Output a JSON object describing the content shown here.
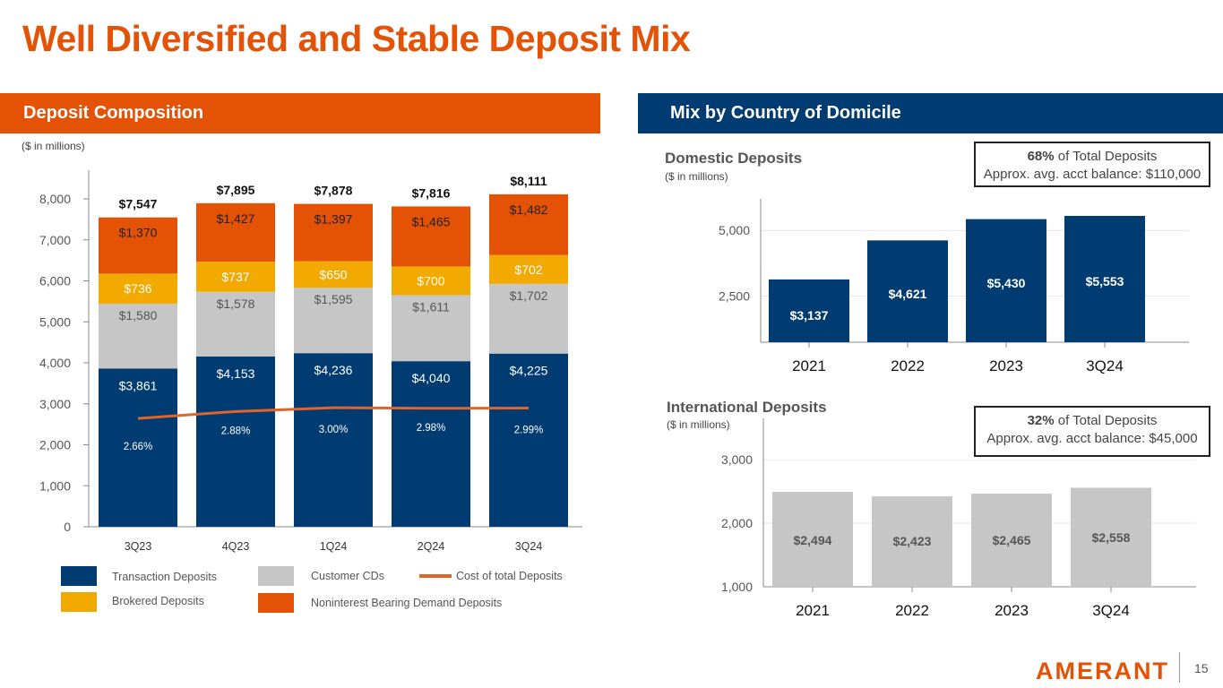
{
  "title": "Well Diversified and Stable Deposit Mix",
  "left_banner": "Deposit Composition",
  "right_banner": "Mix by Country of Domicile",
  "left_units": "($ in millions)",
  "domestic": {
    "heading": "Domestic Deposits",
    "units": "($ in millions)",
    "callout_pct": "68%",
    "callout_text": " of Total Deposits",
    "callout_balance": "Approx. avg. acct balance: $110,000"
  },
  "international": {
    "heading": "International Deposits",
    "units": "($ in millions)",
    "callout_pct": "32%",
    "callout_text": " of Total Deposits",
    "callout_balance": "Approx. avg. acct balance: $45,000"
  },
  "legend": {
    "transaction": "Transaction Deposits",
    "brokered": "Brokered Deposits",
    "cds": "Customer CDs",
    "nonint": "Noninterest Bearing Demand Deposits",
    "cost": "Cost of total Deposits"
  },
  "colors": {
    "orange": "#E35205",
    "navy": "#003B71",
    "gray": "#C6C6C6",
    "gold": "#F2A900",
    "line": "#E0652A"
  },
  "chart_data": [
    {
      "type": "bar",
      "stacked": true,
      "categories": [
        "3Q23",
        "4Q23",
        "1Q24",
        "2Q24",
        "3Q24"
      ],
      "series": [
        {
          "name": "Transaction Deposits",
          "values": [
            3861,
            4153,
            4236,
            4040,
            4225
          ],
          "labels": [
            "$3,861",
            "$4,153",
            "$4,236",
            "$4,040",
            "$4,225"
          ],
          "color": "#003B71"
        },
        {
          "name": "Customer CDs",
          "values": [
            1580,
            1578,
            1595,
            1611,
            1702
          ],
          "labels": [
            "$1,580",
            "$1,578",
            "$1,595",
            "$1,611",
            "$1,702"
          ],
          "color": "#C6C6C6"
        },
        {
          "name": "Brokered Deposits",
          "values": [
            736,
            737,
            650,
            700,
            702
          ],
          "labels": [
            "$736",
            "$737",
            "$650",
            "$700",
            "$702"
          ],
          "color": "#F2A900"
        },
        {
          "name": "Noninterest Bearing Demand Deposits",
          "values": [
            1370,
            1427,
            1397,
            1465,
            1482
          ],
          "labels": [
            "$1,370",
            "$1,427",
            "$1,397",
            "$1,465",
            "$1,482"
          ],
          "color": "#E35205"
        }
      ],
      "line_series": {
        "name": "Cost of total Deposits",
        "values": [
          2.66,
          2.88,
          3.0,
          2.98,
          2.99
        ],
        "labels": [
          "2.66%",
          "2.88%",
          "3.00%",
          "2.98%",
          "2.99%"
        ]
      },
      "totals": [
        "$7,547",
        "$7,895",
        "$7,878",
        "$7,816",
        "$8,111"
      ],
      "yticks": [
        "0",
        "1,000",
        "2,000",
        "3,000",
        "4,000",
        "5,000",
        "6,000",
        "7,000",
        "8,000"
      ],
      "ylim": [
        0,
        8700
      ],
      "legend": "bottom"
    },
    {
      "type": "bar",
      "title": "Domestic Deposits",
      "categories": [
        "2021",
        "2022",
        "2023",
        "3Q24"
      ],
      "values": [
        3137,
        4621,
        5430,
        5553
      ],
      "labels": [
        "$3,137",
        "$4,621",
        "$5,430",
        "$5,553"
      ],
      "yticks": [
        "2,500",
        "5,000"
      ],
      "ylim": [
        750,
        6200
      ],
      "grid": true
    },
    {
      "type": "bar",
      "title": "International Deposits",
      "categories": [
        "2021",
        "2022",
        "2023",
        "3Q24"
      ],
      "values": [
        2494,
        2423,
        2465,
        2558
      ],
      "labels": [
        "$2,494",
        "$2,423",
        "$2,465",
        "$2,558"
      ],
      "yticks": [
        "1,000",
        "2,000",
        "3,000"
      ],
      "ylim": [
        1000,
        3650
      ],
      "grid": true
    }
  ],
  "footer": {
    "logo": "AMERANT",
    "page": "15"
  }
}
